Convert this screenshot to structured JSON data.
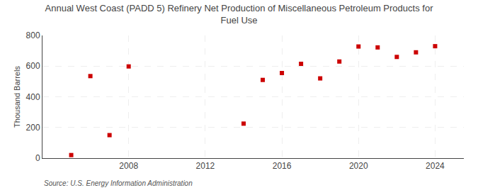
{
  "chart_data": {
    "type": "scatter",
    "title": "Annual West Coast (PADD 5) Refinery Net Production of Miscellaneous Petroleum Products for\nFuel Use",
    "y_label": "Thousand Barrels",
    "annotations": [
      "Source: U.S. Energy Information Administration"
    ],
    "x": [
      2005,
      2006,
      2007,
      2008,
      2014,
      2015,
      2016,
      2017,
      2018,
      2019,
      2020,
      2021,
      2022,
      2023,
      2024
    ],
    "values": [
      20,
      535,
      150,
      598,
      225,
      510,
      555,
      615,
      520,
      630,
      728,
      722,
      660,
      690,
      730
    ],
    "color": "#cc0000",
    "marker": "square",
    "xlim": [
      2003.5,
      2025.5
    ],
    "xticks": [
      2008,
      2012,
      2016,
      2020,
      2024
    ],
    "ylim": [
      0,
      800
    ],
    "yticks": [
      0,
      200,
      400,
      600,
      800
    ],
    "grid": true
  }
}
